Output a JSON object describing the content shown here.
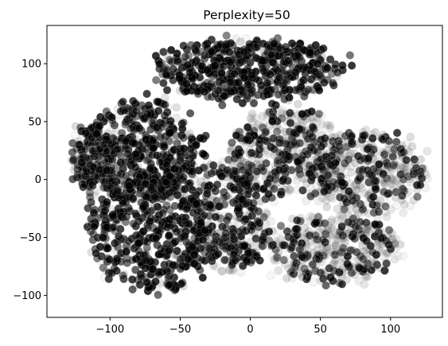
{
  "chart_data": {
    "type": "scatter",
    "title": "Perplexity=50",
    "xlabel": "",
    "ylabel": "",
    "xlim": [
      -145,
      137
    ],
    "ylim": [
      -119,
      133
    ],
    "x_ticks": [
      -100,
      -50,
      0,
      50,
      100
    ],
    "y_ticks": [
      -100,
      -50,
      0,
      50,
      100
    ],
    "x_tick_labels": [
      "−100",
      "−50",
      "0",
      "50",
      "100"
    ],
    "y_tick_labels": [
      "−100",
      "−50",
      "0",
      "50",
      "100"
    ],
    "grid": false,
    "legend": "none",
    "marker_fill": "#000000",
    "marker_edge": "#b0b0b0",
    "clusters": [
      {
        "cx": 0,
        "cy": 95,
        "rx": 70,
        "ry": 28,
        "darkness": 0.85,
        "n": 500
      },
      {
        "cx": -78,
        "cy": 25,
        "rx": 48,
        "ry": 45,
        "darkness": 0.75,
        "n": 480
      },
      {
        "cx": -70,
        "cy": -45,
        "rx": 45,
        "ry": 55,
        "darkness": 0.8,
        "n": 520
      },
      {
        "cx": -15,
        "cy": -30,
        "rx": 30,
        "ry": 55,
        "darkness": 0.6,
        "n": 360
      },
      {
        "cx": 25,
        "cy": 25,
        "rx": 40,
        "ry": 38,
        "darkness": 0.35,
        "n": 400
      },
      {
        "cx": 85,
        "cy": 5,
        "rx": 42,
        "ry": 38,
        "darkness": 0.3,
        "n": 420
      },
      {
        "cx": 60,
        "cy": -60,
        "rx": 50,
        "ry": 30,
        "darkness": 0.25,
        "n": 420
      },
      {
        "cx": -112,
        "cy": 15,
        "rx": 15,
        "ry": 30,
        "darkness": 0.55,
        "n": 120
      }
    ]
  }
}
